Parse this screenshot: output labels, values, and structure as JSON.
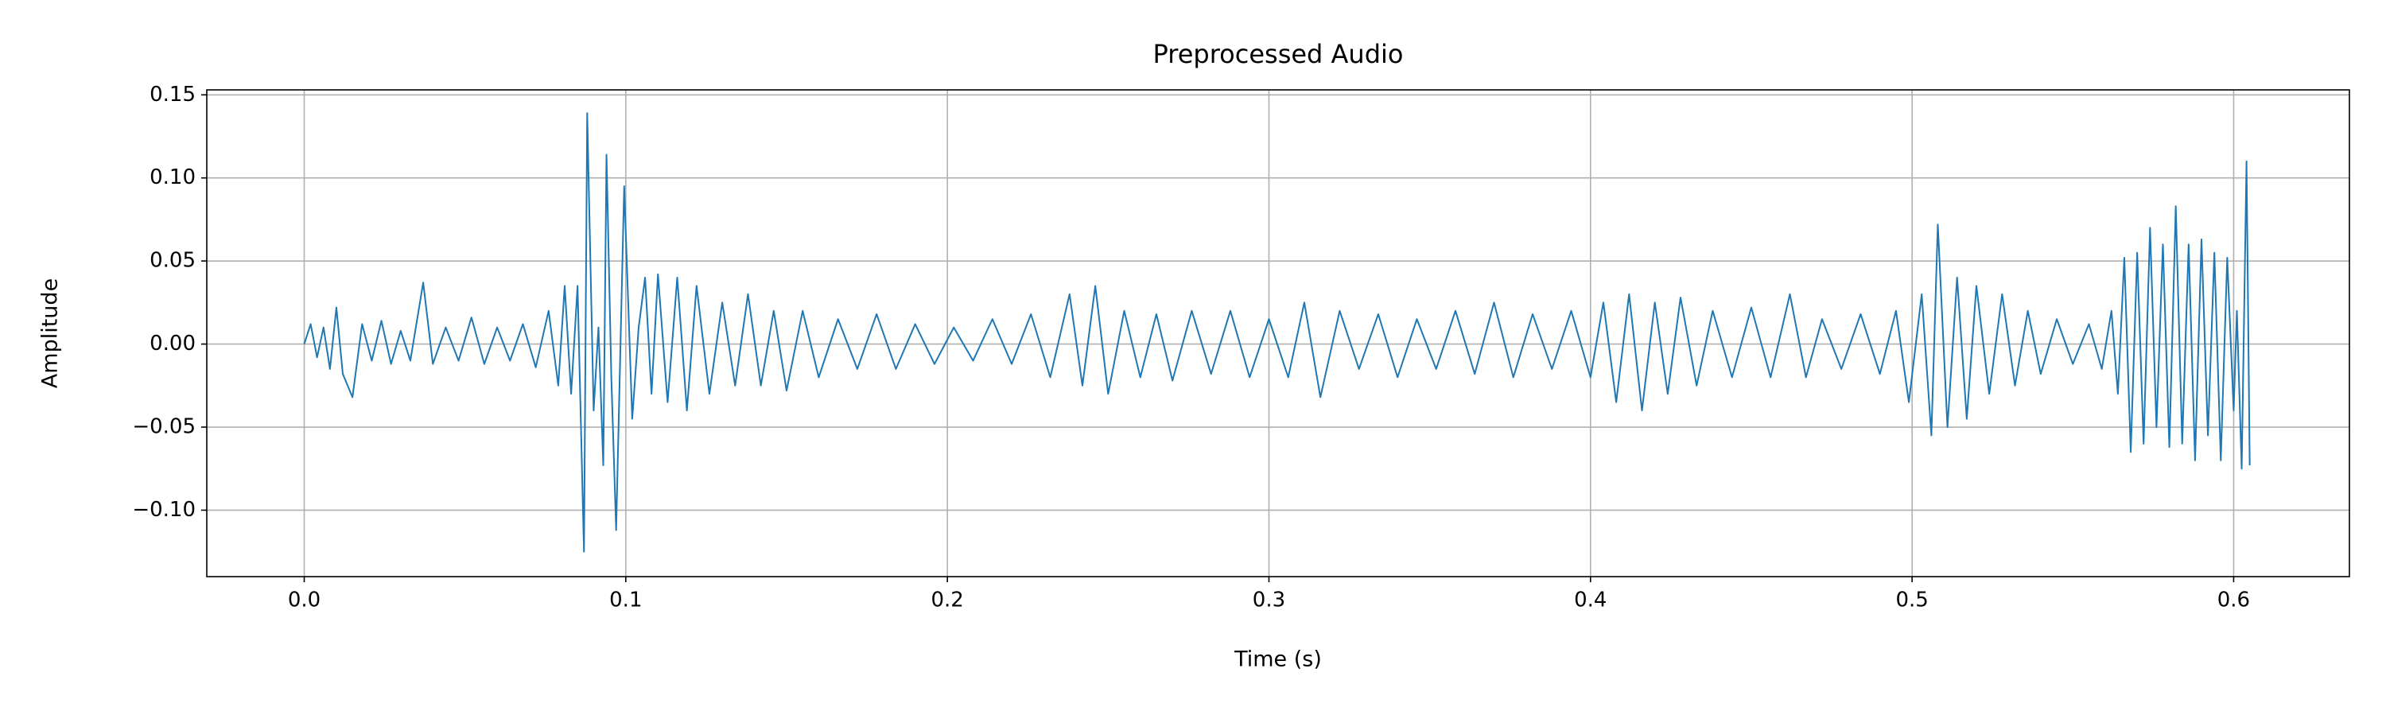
{
  "chart_data": {
    "type": "line",
    "title": "Preprocessed Audio",
    "xlabel": "Time (s)",
    "ylabel": "Amplitude",
    "xlim": [
      -0.0303,
      0.636
    ],
    "ylim": [
      -0.14,
      0.153
    ],
    "xticks": [
      {
        "value": 0,
        "label": "0.0"
      },
      0.1,
      0.2,
      0.3,
      0.4,
      0.5,
      0.6
    ],
    "yticks": [
      {
        "value": -0.1,
        "label": "−0.10"
      },
      {
        "value": -0.05,
        "label": "−0.05"
      },
      {
        "value": 0,
        "label": "0.00"
      },
      {
        "value": 0.05,
        "label": "0.05"
      },
      {
        "value": 0.1,
        "label": "0.10"
      },
      {
        "value": 0.15,
        "label": "0.15"
      }
    ],
    "grid": true,
    "series": [
      {
        "color": "#1f77b4",
        "x": [
          0.0,
          0.002,
          0.004,
          0.006,
          0.008,
          0.01,
          0.012,
          0.015,
          0.018,
          0.021,
          0.024,
          0.027,
          0.03,
          0.033,
          0.037,
          0.04,
          0.044,
          0.048,
          0.052,
          0.056,
          0.06,
          0.064,
          0.068,
          0.072,
          0.076,
          0.079,
          0.081,
          0.083,
          0.085,
          0.087,
          0.088,
          0.09,
          0.0915,
          0.093,
          0.094,
          0.0955,
          0.097,
          0.0995,
          0.102,
          0.104,
          0.106,
          0.108,
          0.11,
          0.113,
          0.116,
          0.119,
          0.122,
          0.126,
          0.13,
          0.134,
          0.138,
          0.142,
          0.146,
          0.15,
          0.155,
          0.16,
          0.166,
          0.172,
          0.178,
          0.184,
          0.19,
          0.196,
          0.202,
          0.208,
          0.214,
          0.22,
          0.226,
          0.232,
          0.238,
          0.242,
          0.246,
          0.25,
          0.255,
          0.26,
          0.265,
          0.27,
          0.276,
          0.282,
          0.288,
          0.294,
          0.3,
          0.306,
          0.311,
          0.316,
          0.322,
          0.328,
          0.334,
          0.34,
          0.346,
          0.352,
          0.358,
          0.364,
          0.37,
          0.376,
          0.382,
          0.388,
          0.394,
          0.4,
          0.404,
          0.408,
          0.412,
          0.416,
          0.42,
          0.424,
          0.428,
          0.433,
          0.438,
          0.444,
          0.45,
          0.456,
          0.462,
          0.467,
          0.472,
          0.478,
          0.484,
          0.49,
          0.495,
          0.499,
          0.503,
          0.506,
          0.508,
          0.511,
          0.514,
          0.517,
          0.52,
          0.524,
          0.528,
          0.532,
          0.536,
          0.54,
          0.545,
          0.55,
          0.555,
          0.559,
          0.562,
          0.564,
          0.566,
          0.568,
          0.57,
          0.572,
          0.574,
          0.576,
          0.578,
          0.58,
          0.582,
          0.584,
          0.586,
          0.588,
          0.59,
          0.592,
          0.594,
          0.596,
          0.598,
          0.6,
          0.601,
          0.6025,
          0.604,
          0.605
        ],
        "values": [
          0,
          0.012,
          -0.008,
          0.01,
          -0.015,
          0.022,
          -0.018,
          -0.032,
          0.012,
          -0.01,
          0.014,
          -0.012,
          0.008,
          -0.01,
          0.037,
          -0.012,
          0.01,
          -0.01,
          0.016,
          -0.012,
          0.01,
          -0.01,
          0.012,
          -0.014,
          0.02,
          -0.025,
          0.035,
          -0.03,
          0.035,
          -0.125,
          0.139,
          -0.04,
          0.01,
          -0.073,
          0.114,
          -0.02,
          -0.112,
          0.095,
          -0.045,
          0.01,
          0.04,
          -0.03,
          0.042,
          -0.035,
          0.04,
          -0.04,
          0.035,
          -0.03,
          0.025,
          -0.025,
          0.03,
          -0.025,
          0.02,
          -0.028,
          0.02,
          -0.02,
          0.015,
          -0.015,
          0.018,
          -0.015,
          0.012,
          -0.012,
          0.01,
          -0.01,
          0.015,
          -0.012,
          0.018,
          -0.02,
          0.03,
          -0.025,
          0.035,
          -0.03,
          0.02,
          -0.02,
          0.018,
          -0.022,
          0.02,
          -0.018,
          0.02,
          -0.02,
          0.015,
          -0.02,
          0.025,
          -0.032,
          0.02,
          -0.015,
          0.018,
          -0.02,
          0.015,
          -0.015,
          0.02,
          -0.018,
          0.025,
          -0.02,
          0.018,
          -0.015,
          0.02,
          -0.02,
          0.025,
          -0.035,
          0.03,
          -0.04,
          0.025,
          -0.03,
          0.028,
          -0.025,
          0.02,
          -0.02,
          0.022,
          -0.02,
          0.03,
          -0.02,
          0.015,
          -0.015,
          0.018,
          -0.018,
          0.02,
          -0.035,
          0.03,
          -0.055,
          0.072,
          -0.05,
          0.04,
          -0.045,
          0.035,
          -0.03,
          0.03,
          -0.025,
          0.02,
          -0.018,
          0.015,
          -0.012,
          0.012,
          -0.015,
          0.02,
          -0.03,
          0.052,
          -0.065,
          0.055,
          -0.06,
          0.07,
          -0.05,
          0.06,
          -0.062,
          0.083,
          -0.06,
          0.06,
          -0.07,
          0.063,
          -0.055,
          0.055,
          -0.07,
          0.052,
          -0.04,
          0.02,
          -0.075,
          0.11,
          -0.073
        ]
      }
    ]
  }
}
